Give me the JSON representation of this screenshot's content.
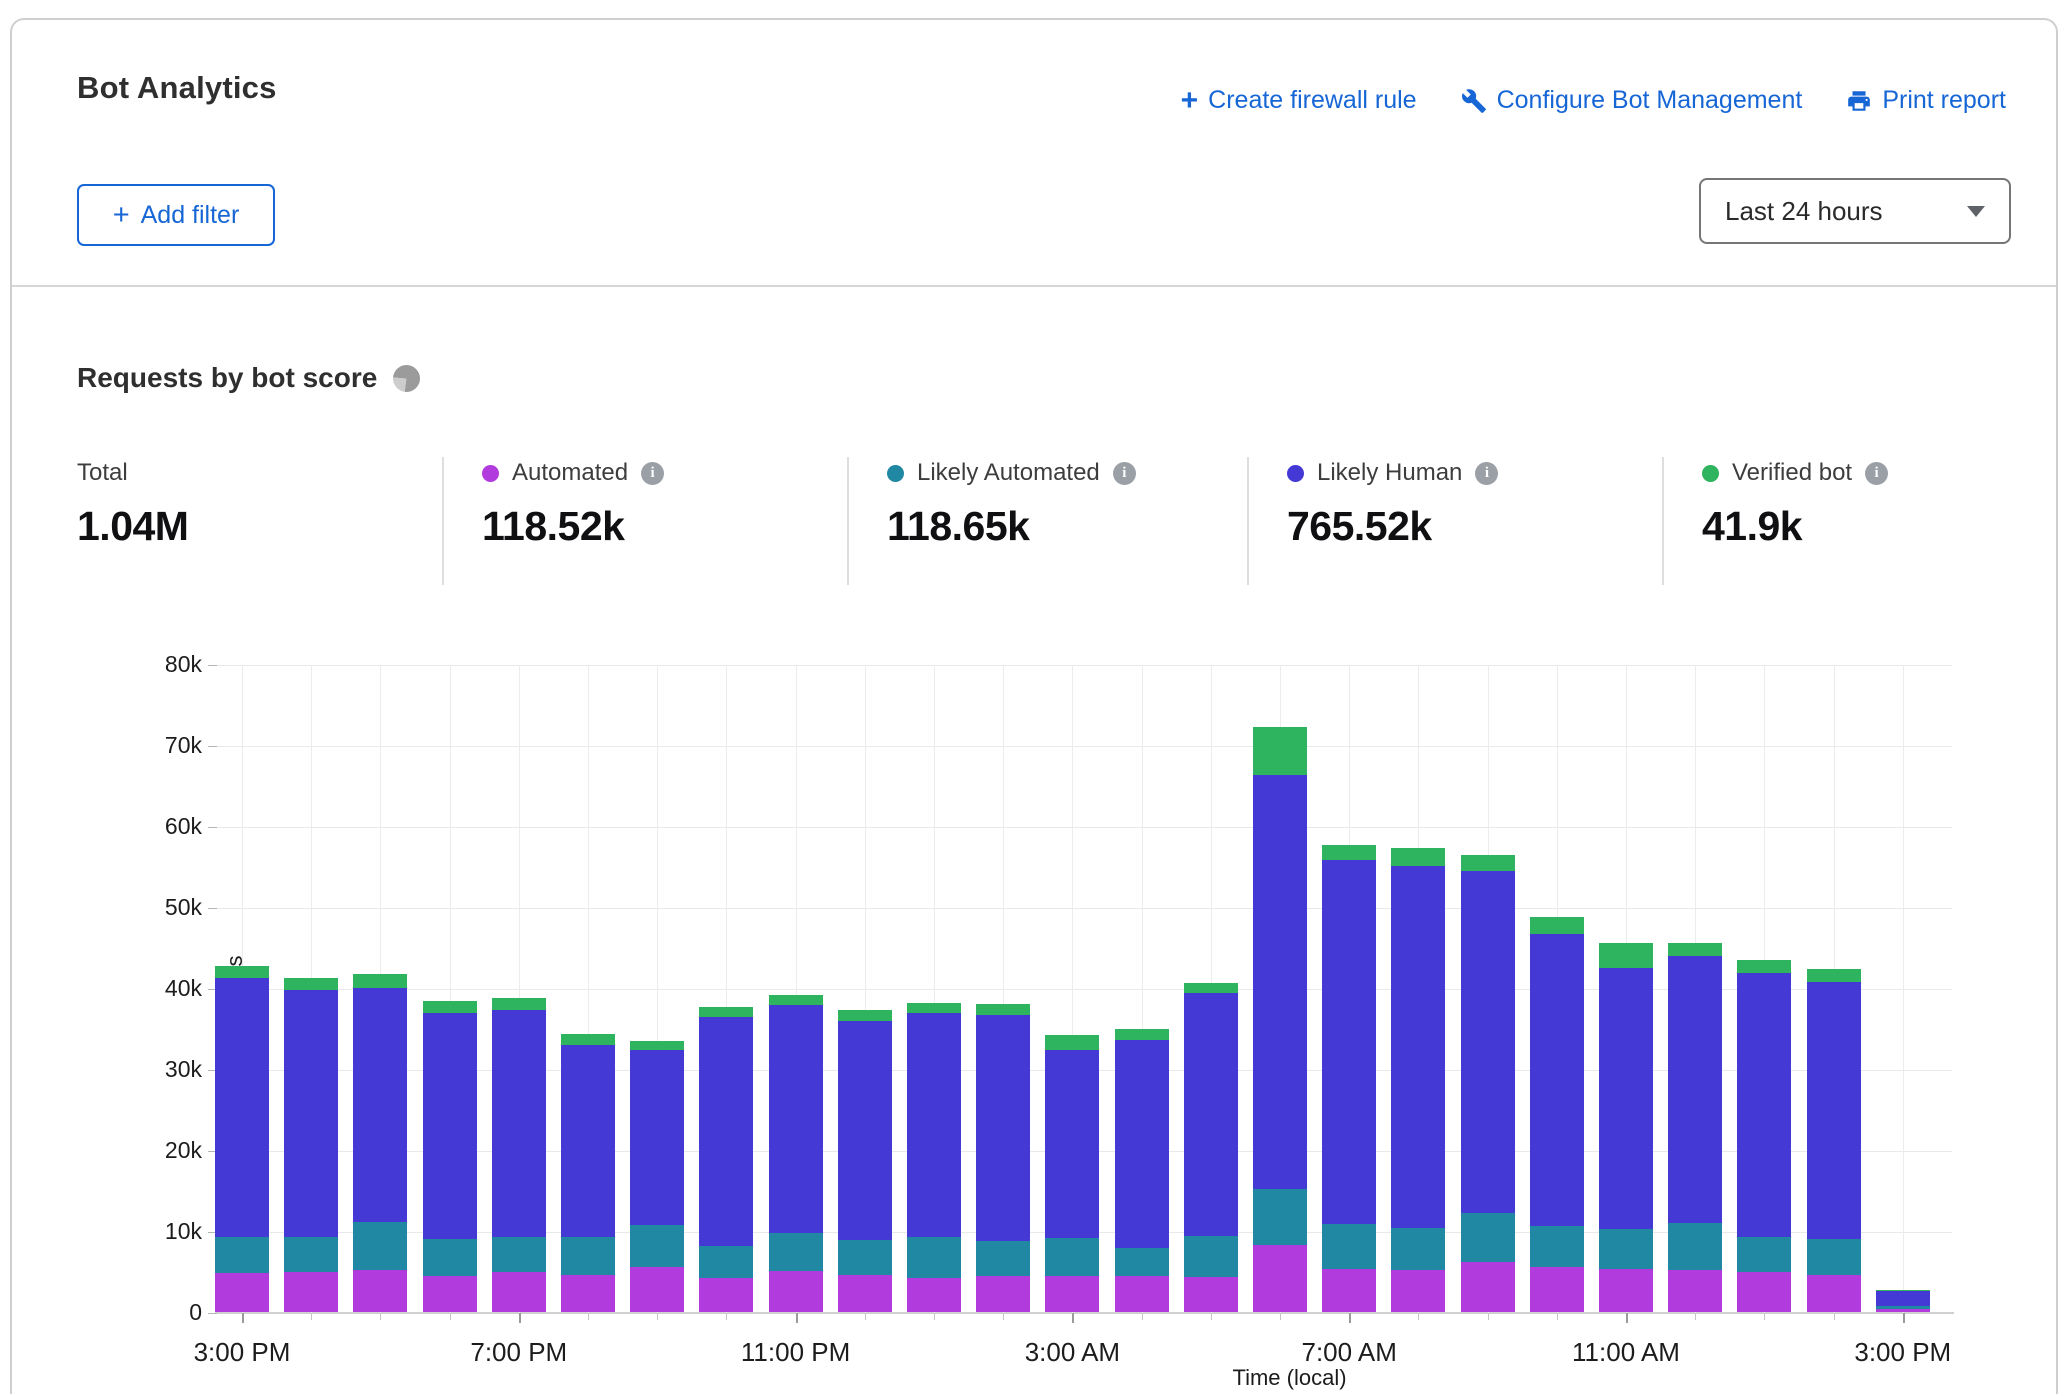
{
  "header": {
    "title": "Bot Analytics",
    "actions": [
      {
        "label": "Create firewall rule",
        "icon": "plus"
      },
      {
        "label": "Configure Bot Management",
        "icon": "wrench"
      },
      {
        "label": "Print report",
        "icon": "printer"
      }
    ],
    "add_filter_label": "Add filter",
    "time_range": "Last 24 hours",
    "link_color": "#1666d6"
  },
  "section": {
    "title": "Requests by bot score"
  },
  "stats": {
    "total": {
      "label": "Total",
      "value": "1.04M"
    },
    "series": [
      {
        "key": "automated",
        "label": "Automated",
        "value": "118.52k",
        "color": "#b23bdd"
      },
      {
        "key": "likely-automated",
        "label": "Likely Automated",
        "value": "118.65k",
        "color": "#2088a2"
      },
      {
        "key": "likely-human",
        "label": "Likely Human",
        "value": "765.52k",
        "color": "#4539d6"
      },
      {
        "key": "verified-bot",
        "label": "Verified bot",
        "value": "41.9k",
        "color": "#2eb35e"
      }
    ]
  },
  "chart_data": {
    "type": "bar",
    "stacked": true,
    "unit": "thousands of requests (k)",
    "bar_interval": "1 hour",
    "note": "25 hourly bars from 3:00 PM to 3:00 PM next day; last bar is the partial current hour",
    "title": "Requests by bot score",
    "xlabel": "Time (local)",
    "ylabel": "Requests",
    "ylim_k": [
      0,
      80
    ],
    "y_tick_labels": [
      "0",
      "10k",
      "20k",
      "30k",
      "40k",
      "50k",
      "60k",
      "70k",
      "80k"
    ],
    "x_tick_labels": [
      "3:00 PM",
      "7:00 PM",
      "11:00 PM",
      "3:00 AM",
      "7:00 AM",
      "11:00 AM",
      "3:00 PM"
    ],
    "x_tick_bar_indices": [
      0,
      4,
      8,
      12,
      16,
      20,
      24
    ],
    "grid": true,
    "legend_position": "stats-row-above-chart",
    "series": [
      {
        "name": "Automated",
        "color": "#b23bdd",
        "values_k": [
          4.8,
          4.9,
          5.2,
          4.5,
          5.0,
          4.6,
          5.5,
          4.2,
          5.1,
          4.6,
          4.2,
          4.4,
          4.4,
          4.4,
          4.3,
          8.3,
          5.3,
          5.2,
          6.2,
          5.5,
          5.3,
          5.2,
          5.0,
          4.6,
          0.4
        ]
      },
      {
        "name": "Likely Automated",
        "color": "#2088a2",
        "values_k": [
          4.5,
          4.4,
          5.9,
          4.5,
          4.3,
          4.7,
          5.2,
          4.0,
          4.6,
          4.3,
          5.1,
          4.4,
          4.8,
          3.5,
          5.1,
          6.9,
          5.6,
          5.2,
          6.0,
          5.1,
          5.0,
          5.8,
          4.2,
          4.4,
          0.3
        ]
      },
      {
        "name": "Likely Human",
        "color": "#4539d6",
        "values_k": [
          31.9,
          30.4,
          28.9,
          27.9,
          28.0,
          23.7,
          21.6,
          28.2,
          28.2,
          27.0,
          27.6,
          27.9,
          23.1,
          25.7,
          30.0,
          51.1,
          44.9,
          44.7,
          42.2,
          36.1,
          32.2,
          33.0,
          32.6,
          31.7,
          1.9
        ]
      },
      {
        "name": "Verified bot",
        "color": "#2eb35e",
        "values_k": [
          1.5,
          1.5,
          1.7,
          1.5,
          1.5,
          1.3,
          1.2,
          1.3,
          1.3,
          1.4,
          1.2,
          1.3,
          1.9,
          1.3,
          1.2,
          5.9,
          1.9,
          2.2,
          2.0,
          2.1,
          3.0,
          1.6,
          1.7,
          1.7,
          0.1
        ]
      }
    ]
  }
}
